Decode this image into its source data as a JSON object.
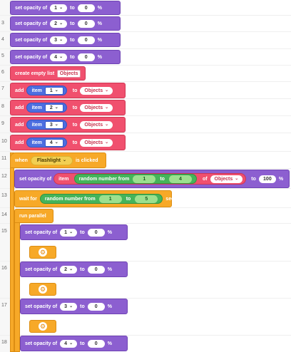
{
  "line_numbers": [
    "",
    "3",
    "4",
    "5",
    "6",
    "7",
    "8",
    "9",
    "10",
    "11",
    "12",
    "13",
    "14",
    "15",
    "16",
    "17",
    "18"
  ],
  "top_opacity": [
    {
      "label": "set opacity of",
      "target": "1",
      "to": "to",
      "value": "0",
      "unit": "%"
    },
    {
      "label": "set opacity of",
      "target": "2",
      "to": "to",
      "value": "0",
      "unit": "%"
    },
    {
      "label": "set opacity of",
      "target": "3",
      "to": "to",
      "value": "0",
      "unit": "%"
    },
    {
      "label": "set opacity of",
      "target": "4",
      "to": "to",
      "value": "0",
      "unit": "%"
    }
  ],
  "create_list": {
    "label": "create empty list",
    "name": "Objects"
  },
  "add_items": [
    {
      "label": "add",
      "item_label": "item",
      "item": "1",
      "to": "to",
      "list": "Objects"
    },
    {
      "label": "add",
      "item_label": "item",
      "item": "2",
      "to": "to",
      "list": "Objects"
    },
    {
      "label": "add",
      "item_label": "item",
      "item": "3",
      "to": "to",
      "list": "Objects"
    },
    {
      "label": "add",
      "item_label": "item",
      "item": "4",
      "to": "to",
      "list": "Objects"
    }
  ],
  "when": {
    "label": "when",
    "object": "Flashlight",
    "event": "is clicked"
  },
  "set_random": {
    "label": "set opacity of",
    "item_label": "item",
    "random_label": "random number from",
    "from": "1",
    "to_word": "to",
    "to": "4",
    "of": "of",
    "list": "Objects",
    "to2": "to",
    "value": "100",
    "unit": "%"
  },
  "wait": {
    "label": "wait for",
    "random_label": "random number from",
    "from": "1",
    "to_word": "to",
    "to": "5",
    "unit": "sec."
  },
  "run_parallel": {
    "label": "run parallel"
  },
  "parallel_opacity": [
    {
      "label": "set opacity of",
      "target": "1",
      "to": "to",
      "value": "0",
      "unit": "%"
    },
    {
      "label": "set opacity of",
      "target": "2",
      "to": "to",
      "value": "0",
      "unit": "%"
    },
    {
      "label": "set opacity of",
      "target": "3",
      "to": "to",
      "value": "0",
      "unit": "%"
    },
    {
      "label": "set opacity of",
      "target": "4",
      "to": "to",
      "value": "0",
      "unit": "%"
    }
  ],
  "icons": {
    "dropdown": "chevron-down-icon",
    "gear": "gear-icon"
  },
  "colors": {
    "looks": "#8c5fd0",
    "lists": "#f0506e",
    "events": "#f7a928",
    "object": "#4c6ee0",
    "math": "#45b45a",
    "flashlight": "#f2cf52"
  }
}
